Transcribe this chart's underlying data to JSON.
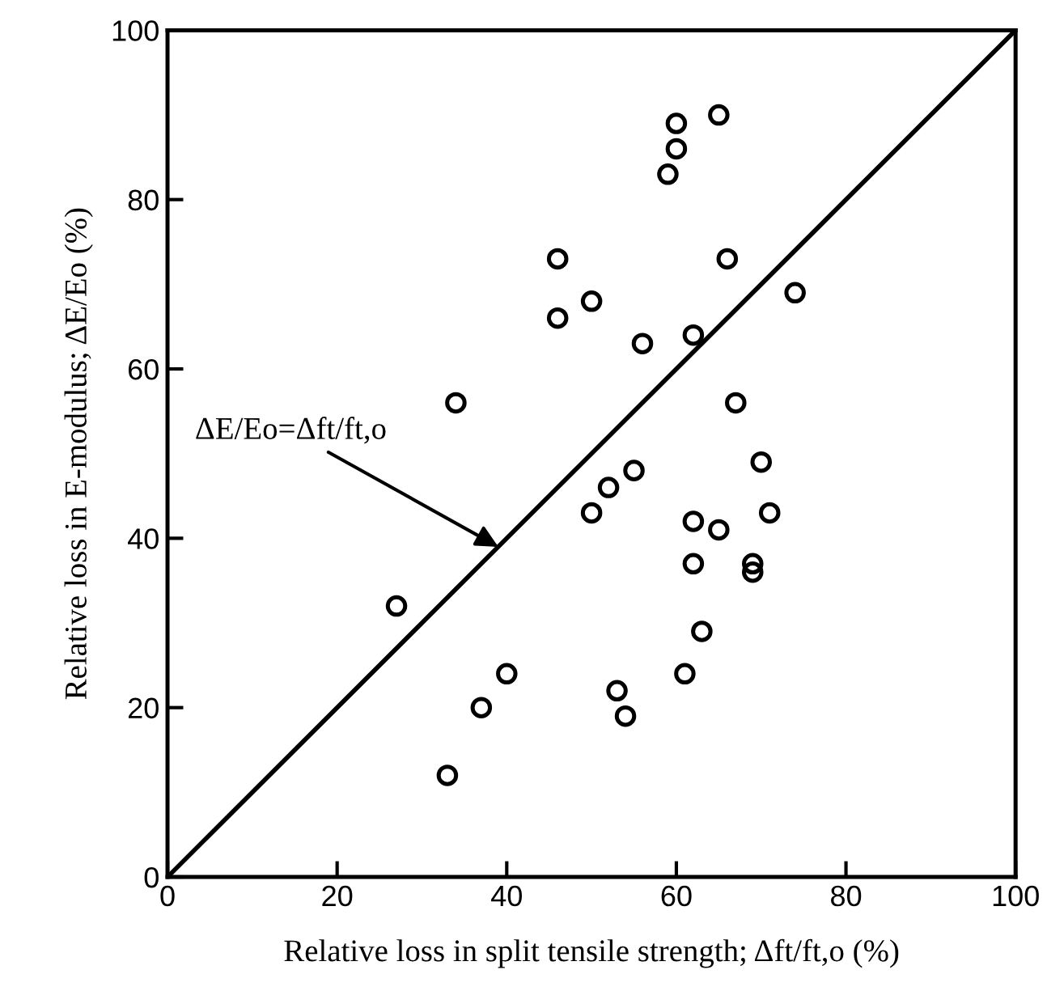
{
  "chart_data": {
    "type": "scatter",
    "xlabel": "Relative loss in split tensile strength; Δft/ft,o (%)",
    "ylabel": "Relative loss in E-modulus; ΔE/Eo (%)",
    "xlim": [
      0,
      100
    ],
    "ylim": [
      0,
      100
    ],
    "xticks": [
      0,
      20,
      40,
      60,
      80,
      100
    ],
    "yticks": [
      0,
      20,
      40,
      60,
      80,
      100
    ],
    "grid": false,
    "legend": false,
    "marker": "circle",
    "series": [
      {
        "color": "#000000",
        "x": [
          27,
          33,
          34,
          37,
          40,
          46,
          46,
          50,
          50,
          52,
          53,
          54,
          55,
          56,
          59,
          60,
          60,
          61,
          62,
          62,
          62,
          63,
          65,
          65,
          66,
          67,
          69,
          69,
          70,
          71,
          74
        ],
        "values": [
          32,
          12,
          56,
          20,
          24,
          73,
          66,
          68,
          43,
          46,
          22,
          19,
          48,
          63,
          83,
          86,
          89,
          24,
          64,
          42,
          37,
          29,
          90,
          41,
          73,
          56,
          37,
          36,
          49,
          43,
          69
        ]
      },
      {
        "type": "line",
        "color": "#000000",
        "x": [
          0,
          100
        ],
        "values": [
          0,
          100
        ],
        "line_style": "solid",
        "marker": "none"
      }
    ],
    "annotations": [
      {
        "text": "ΔE/Eo=Δft/ft,o",
        "x": 39,
        "y": 39
      }
    ]
  }
}
